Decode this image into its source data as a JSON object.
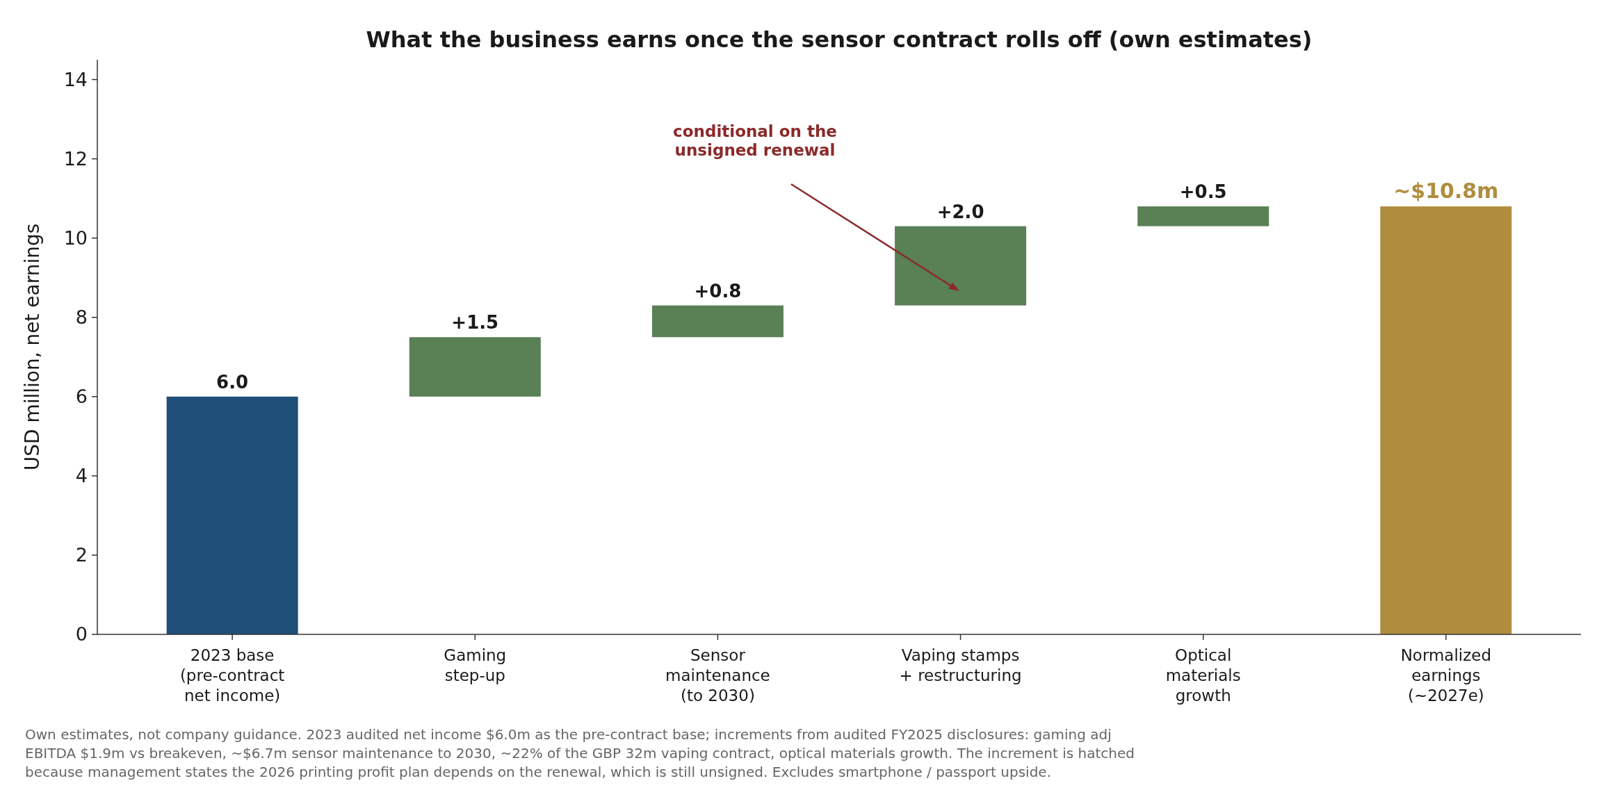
{
  "chart_data": {
    "type": "bar",
    "title": "What the business earns once the sensor contract rolls off (own estimates)",
    "ylabel": "USD million, net earnings",
    "categories": [
      "2023 base\n(pre-contract\nnet income)",
      "Gaming\nstep-up",
      "Sensor\nmaintenance\n(to 2030)",
      "Vaping stamps\n+ restructuring",
      "Optical\nmaterials\ngrowth",
      "Normalized\nearnings\n(~2027e)"
    ],
    "values": [
      6.0,
      1.5,
      0.8,
      2.0,
      0.5,
      10.8
    ],
    "base": [
      0,
      6.0,
      7.5,
      8.3,
      10.3,
      0
    ],
    "colors": [
      "#1f4e79",
      "#5a8055",
      "#5a8055",
      "#5a8055",
      "#5a8055",
      "#b08d3e"
    ],
    "value_labels": [
      "6.0",
      "+1.5",
      "+0.8",
      "+2.0",
      "+0.5",
      "~$10.8m"
    ],
    "ylim": [
      0,
      14.5
    ],
    "yticks": [
      0,
      2,
      4,
      6,
      8,
      10,
      12,
      14
    ],
    "grid": false,
    "annotations": [
      "conditional on the\nunsigned renewal",
      "Own estimates, not company guidance. 2023 audited net income $6.0m as the pre-contract base; increments from audited FY2025 disclosures: gaming adj EBITDA $1.9m vs breakeven, ~$6.7m sensor maintenance to 2030, ~22% of the GBP 32m vaping contract, optical materials growth. The increment is hatched because management states the 2026 printing profit plan depends on the renewal, which is still unsigned. Excludes smartphone / passport upside."
    ]
  }
}
